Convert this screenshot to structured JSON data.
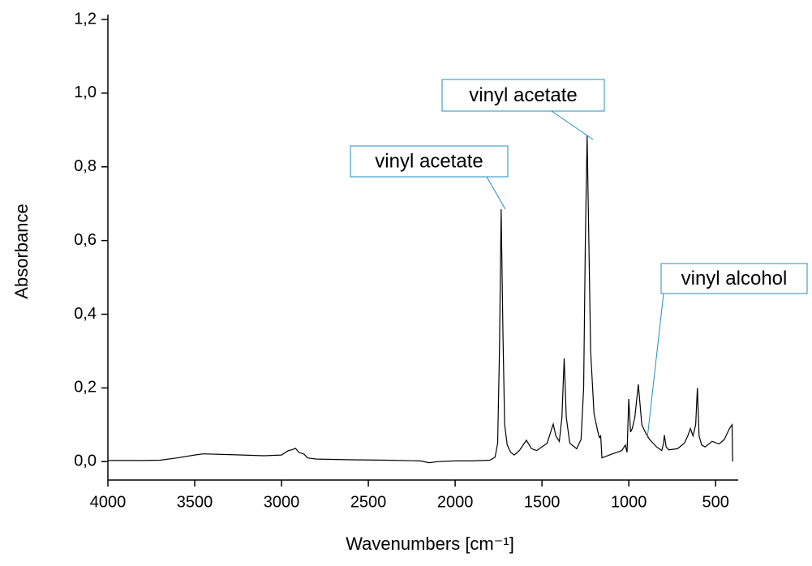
{
  "chart_data": {
    "type": "line",
    "xlabel": "Wavenumbers [cm⁻¹]",
    "ylabel": "Absorbance",
    "x": [
      4000,
      3800,
      3700,
      3600,
      3500,
      3450,
      3300,
      3100,
      3000,
      2960,
      2940,
      2920,
      2900,
      2870,
      2850,
      2800,
      2600,
      2400,
      2200,
      2150,
      2100,
      2000,
      1900,
      1800,
      1770,
      1755,
      1745,
      1735,
      1725,
      1715,
      1700,
      1680,
      1660,
      1630,
      1590,
      1560,
      1530,
      1470,
      1450,
      1435,
      1420,
      1400,
      1385,
      1372,
      1360,
      1340,
      1300,
      1275,
      1260,
      1250,
      1240,
      1230,
      1220,
      1200,
      1180,
      1170,
      1162,
      1158,
      1155,
      1100,
      1040,
      1020,
      1010,
      1000,
      990,
      980,
      965,
      945,
      925,
      900,
      880,
      840,
      810,
      800,
      795,
      785,
      770,
      720,
      680,
      660,
      645,
      630,
      615,
      605,
      595,
      580,
      560,
      520,
      480,
      450,
      420,
      405,
      402
    ],
    "values": [
      0.003,
      0.003,
      0.004,
      0.01,
      0.018,
      0.021,
      0.019,
      0.016,
      0.018,
      0.03,
      0.032,
      0.036,
      0.025,
      0.02,
      0.01,
      0.007,
      0.005,
      0.004,
      0.002,
      -0.003,
      0.0,
      0.002,
      0.002,
      0.004,
      0.012,
      0.05,
      0.3,
      0.685,
      0.35,
      0.1,
      0.045,
      0.025,
      0.018,
      0.03,
      0.058,
      0.035,
      0.03,
      0.05,
      0.08,
      0.102,
      0.07,
      0.055,
      0.12,
      0.28,
      0.12,
      0.05,
      0.035,
      0.06,
      0.2,
      0.6,
      0.885,
      0.6,
      0.3,
      0.13,
      0.085,
      0.065,
      0.07,
      0.04,
      0.01,
      0.02,
      0.03,
      0.045,
      0.025,
      0.17,
      0.08,
      0.09,
      0.12,
      0.21,
      0.1,
      0.075,
      0.06,
      0.04,
      0.03,
      0.05,
      0.072,
      0.04,
      0.032,
      0.035,
      0.05,
      0.07,
      0.09,
      0.07,
      0.1,
      0.2,
      0.07,
      0.045,
      0.04,
      0.055,
      0.048,
      0.06,
      0.09,
      0.1,
      0.0
    ],
    "color": "#000000",
    "xlim": [
      4000,
      370
    ],
    "xticks": [
      4000,
      3500,
      3000,
      2500,
      2000,
      1500,
      1000,
      500
    ],
    "ylim": [
      -0.05,
      1.2
    ],
    "yticks": [
      {
        "value": 0,
        "label": "0,0"
      },
      {
        "value": 0.2,
        "label": "0,2"
      },
      {
        "value": 0.4,
        "label": "0,4"
      },
      {
        "value": 0.6,
        "label": "0,6"
      },
      {
        "value": 0.8,
        "label": "0,8"
      },
      {
        "value": 1.0,
        "label": "1,0"
      },
      {
        "value": 1.2,
        "label": "1,2"
      }
    ],
    "annotations": [
      "vinyl acetate",
      "vinyl acetate",
      "vinyl alcohol"
    ]
  }
}
